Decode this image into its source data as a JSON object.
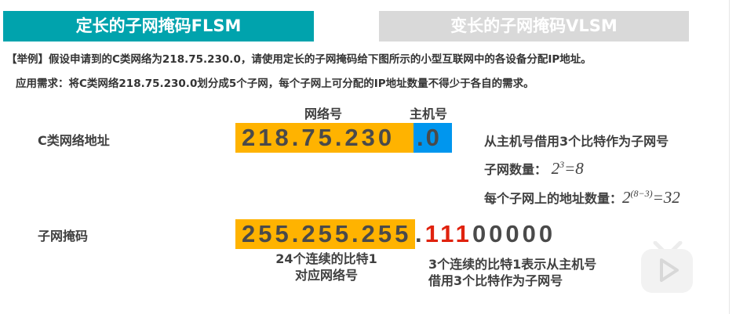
{
  "tabs": [
    {
      "label": "定长的子网掩码FLSM",
      "active": true
    },
    {
      "label": "变长的子网掩码VLSM",
      "active": false
    }
  ],
  "example": "【举例】假设申请到的C类网络为218.75.230.0，请使用定长的子网掩码给下图所示的小型互联网中的各设备分配IP地址。",
  "requirement": "应用需求：将C类网络218.75.230.0划分成5个子网，每个子网上可分配的IP地址数量不得少于各自的需求。",
  "address": {
    "label": "C类网络地址",
    "net_header": "网络号",
    "host_header": "主机号",
    "net_part": "218.75.230",
    "host_part": ".0"
  },
  "notes": {
    "borrow": "从主机号借用3个比特作为子网号",
    "subnet_count_label": "子网数量：",
    "subnet_count_base": "2",
    "subnet_count_exp": "3",
    "subnet_count_result": "=8",
    "addr_count_label": "每个子网上的地址数量：",
    "addr_count_base": "2",
    "addr_count_exp": "(8−3)",
    "addr_count_result": "=32"
  },
  "mask": {
    "label": "子网掩码",
    "net_part": "255.255.255",
    "dot": ".",
    "borrowed_bits": "111",
    "host_bits": "00000",
    "note_left_1": "24个连续的比特1",
    "note_left_2": "对应网络号",
    "note_right_1": "3个连续的比特1表示从主机号",
    "note_right_2": "借用3个比特作为子网号"
  },
  "colors": {
    "teal": "#00a3ad",
    "orange": "#ffb300",
    "blue": "#0096ee",
    "red": "#e0220e"
  }
}
